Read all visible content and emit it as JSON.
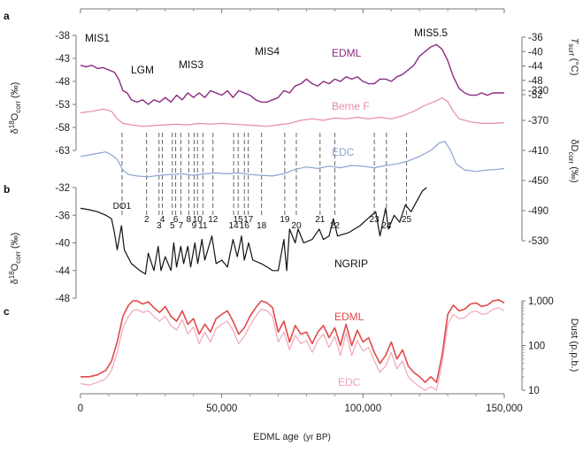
{
  "chart_data": {
    "type": "line",
    "xlabel": "EDML age",
    "xunit": "(yr BP)",
    "xlim": [
      0,
      150000
    ],
    "xticks": [
      "0",
      "50,000",
      "100,000",
      "150,000"
    ],
    "panels": {
      "a": "a",
      "b": "b",
      "c": "c"
    },
    "axes": {
      "d18o_edml": {
        "ticks": [
          "-38",
          "-43",
          "-48",
          "-53",
          "-58",
          "-63"
        ],
        "label_main": "δ",
        "label_sup": "18",
        "label_rest": "O",
        "label_sub": "corr",
        "label_unit": "(‰)"
      },
      "tsurf": {
        "ticks": [
          "-36",
          "-40",
          "-44",
          "-48",
          "-52"
        ],
        "label_main": "T",
        "label_sub": "surf",
        "label_unit": "(°C)"
      },
      "dD": {
        "ticks": [
          "-330",
          "-370",
          "-410",
          "-450",
          "-490",
          "-530"
        ],
        "label_main": "δD",
        "label_sub": "corr",
        "label_unit": "(‰)"
      },
      "d18o_ngrip": {
        "ticks": [
          "-32",
          "-36",
          "-40",
          "-44",
          "-48"
        ],
        "label_main": "δ",
        "label_sup": "18",
        "label_rest": "O",
        "label_sub": "corr",
        "label_unit": "(‰)"
      },
      "dust": {
        "ticks": [
          "1,000",
          "100",
          "10"
        ],
        "label": "Dust (p.p.b.)"
      }
    },
    "mis_labels": [
      "MIS1",
      "LGM",
      "MIS3",
      "MIS4",
      "MIS5.5"
    ],
    "do_events": [
      {
        "label": "DO1",
        "age": 14700
      },
      {
        "label": "2",
        "age": 23400
      },
      {
        "label": "3",
        "age": 27800
      },
      {
        "label": "4",
        "age": 29000
      },
      {
        "label": "5",
        "age": 32500
      },
      {
        "label": "6",
        "age": 33700
      },
      {
        "label": "7",
        "age": 35500
      },
      {
        "label": "8",
        "age": 38300
      },
      {
        "label": "9",
        "age": 40200
      },
      {
        "label": "10",
        "age": 41400
      },
      {
        "label": "11",
        "age": 43300
      },
      {
        "label": "12",
        "age": 46900
      },
      {
        "label": "14",
        "age": 54200
      },
      {
        "label": "15",
        "age": 55800
      },
      {
        "label": "16",
        "age": 58000
      },
      {
        "label": "17",
        "age": 59400
      },
      {
        "label": "18",
        "age": 64100
      },
      {
        "label": "19",
        "age": 72300
      },
      {
        "label": "20",
        "age": 76400
      },
      {
        "label": "21",
        "age": 84800
      },
      {
        "label": "22",
        "age": 90000
      },
      {
        "label": "23",
        "age": 104000
      },
      {
        "label": "24",
        "age": 108300
      },
      {
        "label": "25",
        "age": 115400
      }
    ],
    "series": [
      {
        "name": "EDML",
        "color": "#8b2a82",
        "axis": "d18o_edml",
        "x": [
          0,
          2000,
          4000,
          6000,
          8000,
          10000,
          12000,
          13500,
          15000,
          16500,
          18000,
          20000,
          22000,
          24000,
          26000,
          28000,
          30000,
          32000,
          34000,
          36000,
          38000,
          40000,
          42000,
          44000,
          46000,
          48000,
          50000,
          52000,
          54000,
          56000,
          58000,
          60000,
          62000,
          64000,
          66000,
          68000,
          70000,
          72000,
          74000,
          76000,
          78000,
          80000,
          82000,
          84000,
          86000,
          88000,
          90000,
          92000,
          94000,
          96000,
          98000,
          100000,
          102000,
          104000,
          106000,
          108000,
          110000,
          112000,
          114000,
          116000,
          118000,
          120000,
          122000,
          124000,
          126000,
          128000,
          130000,
          132000,
          134000,
          136000,
          138000,
          140000,
          142000,
          144000,
          146000,
          148000,
          150000
        ],
        "y": [
          -44.5,
          -44.8,
          -44.5,
          -45.2,
          -45.0,
          -45.5,
          -46.0,
          -47.5,
          -50.0,
          -50.5,
          -52.0,
          -52.5,
          -52.0,
          -53.0,
          -52.0,
          -52.5,
          -51.5,
          -52.5,
          -51.0,
          -52.0,
          -50.5,
          -51.5,
          -50.5,
          -51.5,
          -50.0,
          -50.5,
          -51.0,
          -50.0,
          -51.5,
          -50.0,
          -50.5,
          -51.0,
          -52.0,
          -52.5,
          -52.5,
          -52.0,
          -51.5,
          -50.0,
          -50.5,
          -49.0,
          -48.5,
          -47.5,
          -48.5,
          -49.0,
          -48.0,
          -48.5,
          -47.5,
          -48.0,
          -47.0,
          -47.5,
          -47.0,
          -48.0,
          -48.5,
          -48.5,
          -47.5,
          -47.5,
          -48.0,
          -47.0,
          -46.5,
          -45.5,
          -44.5,
          -42.5,
          -41.5,
          -40.5,
          -40.0,
          -41.0,
          -43.5,
          -47.0,
          -49.5,
          -50.5,
          -51.0,
          -51.0,
          -50.5,
          -51.0,
          -50.5,
          -50.5,
          -50.5
        ]
      },
      {
        "name": "Berne F",
        "color": "#e58aa8",
        "axis": "dD",
        "x": [
          0,
          4000,
          8000,
          11000,
          13000,
          15000,
          18000,
          22000,
          26000,
          30000,
          34000,
          38000,
          42000,
          46000,
          50000,
          54000,
          58000,
          62000,
          66000,
          70000,
          74000,
          78000,
          82000,
          86000,
          90000,
          94000,
          98000,
          102000,
          106000,
          110000,
          114000,
          118000,
          122000,
          126000,
          128000,
          130000,
          132000,
          134000,
          138000,
          142000,
          146000,
          150000
        ],
        "y": [
          -360,
          -358,
          -355,
          -358,
          -368,
          -374,
          -376,
          -378,
          -377,
          -376,
          -375,
          -376,
          -374,
          -375,
          -374,
          -375,
          -376,
          -377,
          -378,
          -376,
          -374,
          -370,
          -368,
          -370,
          -367,
          -368,
          -366,
          -368,
          -366,
          -368,
          -364,
          -358,
          -350,
          -344,
          -340,
          -345,
          -358,
          -368,
          -372,
          -374,
          -374,
          -373
        ]
      },
      {
        "name": "EDC",
        "color": "#8ba4d0",
        "axis": "dD",
        "x": [
          0,
          3000,
          6000,
          9000,
          11000,
          13000,
          15000,
          17000,
          20000,
          24000,
          28000,
          32000,
          36000,
          40000,
          44000,
          48000,
          52000,
          56000,
          60000,
          64000,
          68000,
          72000,
          76000,
          80000,
          84000,
          88000,
          92000,
          96000,
          100000,
          104000,
          108000,
          112000,
          116000,
          120000,
          124000,
          127000,
          129000,
          131000,
          133000,
          136000,
          140000,
          144000,
          148000,
          150000
        ],
        "y": [
          -418,
          -416,
          -414,
          -412,
          -416,
          -422,
          -436,
          -442,
          -444,
          -445,
          -443,
          -442,
          -441,
          -443,
          -441,
          -440,
          -441,
          -440,
          -442,
          -443,
          -444,
          -441,
          -435,
          -432,
          -434,
          -431,
          -433,
          -430,
          -431,
          -433,
          -430,
          -428,
          -424,
          -418,
          -410,
          -400,
          -398,
          -410,
          -428,
          -436,
          -438,
          -436,
          -435,
          -434
        ]
      },
      {
        "name": "NGRIP",
        "color": "#111111",
        "axis": "d18o_ngrip",
        "x": [
          0,
          3000,
          6000,
          9000,
          11000,
          12000,
          13000,
          14500,
          15500,
          18000,
          21000,
          23000,
          24000,
          26000,
          27500,
          28500,
          30000,
          32000,
          33000,
          34000,
          35500,
          36500,
          38000,
          39000,
          40500,
          41500,
          43000,
          44000,
          46500,
          48000,
          50000,
          52000,
          54000,
          55500,
          57000,
          58000,
          59500,
          61000,
          64000,
          66000,
          68000,
          70000,
          72000,
          73000,
          74000,
          76000,
          77000,
          79000,
          82000,
          84500,
          86000,
          88000,
          89500,
          91000,
          95000,
          99000,
          103000,
          104500,
          106000,
          108000,
          109000,
          111000,
          113000,
          115000,
          117000,
          119000,
          121000,
          122500
        ],
        "y": [
          -35.0,
          -35.2,
          -35.5,
          -36.0,
          -36.5,
          -38.5,
          -41.0,
          -37.5,
          -41.0,
          -43.0,
          -44.0,
          -44.5,
          -41.5,
          -44.0,
          -40.5,
          -44.0,
          -42.0,
          -44.0,
          -40.0,
          -43.5,
          -40.5,
          -43.0,
          -40.5,
          -43.5,
          -40.0,
          -43.0,
          -39.5,
          -42.5,
          -39.0,
          -43.0,
          -42.5,
          -43.5,
          -39.5,
          -42.0,
          -39.0,
          -42.5,
          -40.0,
          -42.5,
          -43.0,
          -43.5,
          -44.0,
          -44.0,
          -39.5,
          -44.0,
          -38.0,
          -40.0,
          -38.0,
          -40.0,
          -39.5,
          -38.0,
          -39.5,
          -39.0,
          -36.5,
          -39.0,
          -38.5,
          -37.5,
          -36.0,
          -35.5,
          -39.0,
          -35.0,
          -38.0,
          -36.0,
          -37.0,
          -34.5,
          -35.5,
          -34.0,
          -32.5,
          -32.0
        ]
      },
      {
        "name": "EDML",
        "color": "#e04a4a",
        "axis": "dust",
        "x": [
          0,
          3000,
          6000,
          9000,
          11000,
          13000,
          15000,
          17000,
          18500,
          20000,
          22000,
          24000,
          26000,
          28000,
          30000,
          32000,
          34000,
          36000,
          38000,
          40000,
          42000,
          44000,
          46000,
          48000,
          50000,
          52000,
          54000,
          56000,
          58000,
          60000,
          62000,
          64000,
          66000,
          68000,
          70000,
          72000,
          74000,
          76000,
          78000,
          80000,
          82000,
          84000,
          86000,
          88000,
          90000,
          92000,
          94000,
          96000,
          98000,
          100000,
          102000,
          104000,
          106000,
          108000,
          110000,
          112000,
          114000,
          116000,
          118000,
          120000,
          122000,
          124000,
          126000,
          128000,
          130000,
          132000,
          134000,
          136000,
          138000,
          140000,
          142000,
          144000,
          146000,
          148000,
          150000
        ],
        "y": [
          20,
          20,
          22,
          28,
          45,
          120,
          450,
          800,
          1000,
          1000,
          850,
          950,
          700,
          550,
          750,
          450,
          350,
          600,
          300,
          400,
          180,
          300,
          200,
          400,
          500,
          600,
          350,
          180,
          250,
          450,
          700,
          1000,
          900,
          700,
          200,
          350,
          120,
          280,
          180,
          200,
          110,
          200,
          280,
          150,
          250,
          100,
          300,
          100,
          220,
          120,
          150,
          70,
          40,
          60,
          120,
          50,
          80,
          35,
          25,
          20,
          15,
          20,
          15,
          60,
          500,
          800,
          600,
          650,
          850,
          900,
          750,
          800,
          1000,
          1050,
          900
        ]
      },
      {
        "name": "EDC",
        "color": "#f0a0b4",
        "axis": "dust",
        "x": [
          0,
          3000,
          6000,
          9000,
          11000,
          13000,
          15000,
          17000,
          18500,
          20000,
          22000,
          24000,
          26000,
          28000,
          30000,
          32000,
          34000,
          36000,
          38000,
          40000,
          42000,
          44000,
          46000,
          48000,
          50000,
          52000,
          54000,
          56000,
          58000,
          60000,
          62000,
          64000,
          66000,
          68000,
          70000,
          72000,
          74000,
          76000,
          78000,
          80000,
          82000,
          84000,
          86000,
          88000,
          90000,
          92000,
          94000,
          96000,
          98000,
          100000,
          102000,
          104000,
          106000,
          108000,
          110000,
          112000,
          114000,
          116000,
          118000,
          120000,
          122000,
          124000,
          126000,
          128000,
          130000,
          132000,
          134000,
          136000,
          138000,
          140000,
          142000,
          144000,
          146000,
          148000,
          150000
        ],
        "y": [
          14,
          13,
          15,
          18,
          28,
          70,
          250,
          450,
          600,
          650,
          550,
          600,
          450,
          350,
          450,
          280,
          220,
          380,
          180,
          260,
          110,
          200,
          120,
          240,
          300,
          350,
          220,
          110,
          160,
          280,
          450,
          650,
          600,
          450,
          120,
          200,
          80,
          170,
          110,
          130,
          70,
          130,
          180,
          90,
          160,
          60,
          190,
          60,
          130,
          75,
          90,
          45,
          25,
          35,
          70,
          30,
          45,
          20,
          15,
          12,
          10,
          12,
          10,
          40,
          300,
          500,
          400,
          420,
          550,
          600,
          500,
          520,
          650,
          700,
          600
        ]
      }
    ]
  }
}
